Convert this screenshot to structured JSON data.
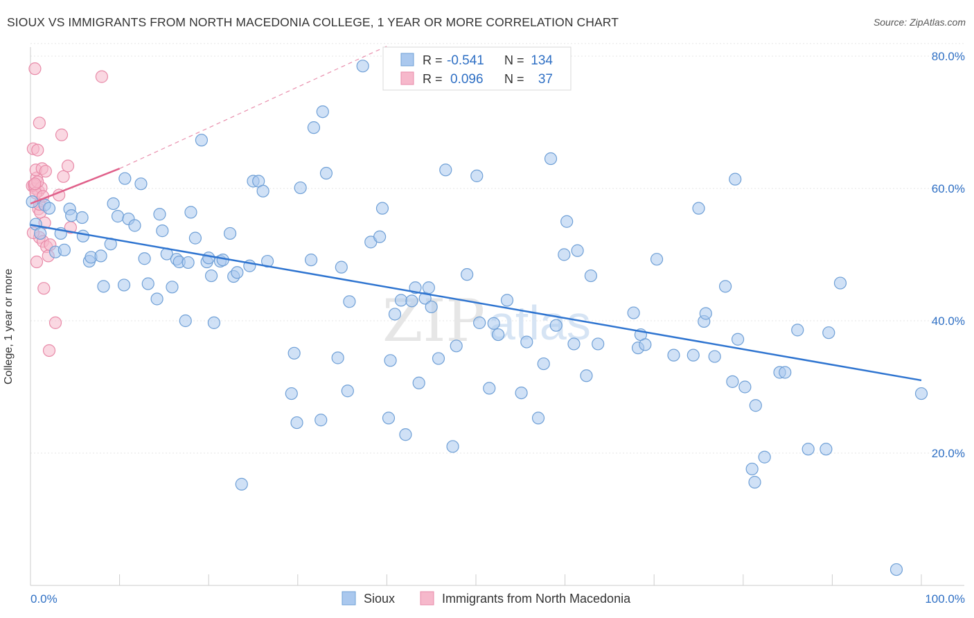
{
  "title": "SIOUX VS IMMIGRANTS FROM NORTH MACEDONIA COLLEGE, 1 YEAR OR MORE CORRELATION CHART",
  "source": "Source: ZipAtlas.com",
  "watermark": {
    "zip": "ZIP",
    "atlas": "atlas"
  },
  "legend_box": {
    "r_label": "R =",
    "n_label": "N =",
    "rows": [
      {
        "series": "Sioux",
        "r": "-0.541",
        "n": "134"
      },
      {
        "series": "Immigrants from North Macedonia",
        "r": "0.096",
        "n": "37"
      }
    ]
  },
  "bottom_legend": [
    "Sioux",
    "Immigrants from North Macedonia"
  ],
  "colors": {
    "sioux_fill": "#aac8ee",
    "sioux_stroke": "#6e9fd6",
    "sioux_line": "#2e74d0",
    "mac_fill": "#f6b8cb",
    "mac_stroke": "#e88aa8",
    "mac_line": "#e0608a",
    "value_text": "#2e6fc4",
    "grid": "#e5e5e5"
  },
  "chart_data": {
    "type": "scatter",
    "xlabel": "",
    "ylabel": "College, 1 year or more",
    "xlim": [
      0,
      100
    ],
    "ylim": [
      0,
      82
    ],
    "x_tick_labels": [
      "0.0%",
      "100.0%"
    ],
    "y_tick_labels": [
      "20.0%",
      "40.0%",
      "60.0%",
      "80.0%"
    ],
    "y_ticks": [
      20,
      40,
      60,
      80
    ],
    "grid": true,
    "series": [
      {
        "name": "Sioux",
        "r": -0.541,
        "n": 134,
        "trend": {
          "x": [
            0,
            100
          ],
          "y": [
            54.5,
            31.0
          ]
        },
        "points": [
          [
            0.2,
            58.0
          ],
          [
            0.6,
            54.6
          ],
          [
            1.1,
            53.2
          ],
          [
            1.6,
            57.5
          ],
          [
            2.1,
            57.0
          ],
          [
            2.8,
            50.4
          ],
          [
            3.4,
            53.2
          ],
          [
            3.8,
            50.7
          ],
          [
            4.4,
            56.9
          ],
          [
            4.6,
            55.9
          ],
          [
            5.8,
            55.6
          ],
          [
            5.9,
            52.8
          ],
          [
            6.6,
            49.0
          ],
          [
            6.8,
            49.6
          ],
          [
            7.9,
            49.8
          ],
          [
            8.2,
            45.2
          ],
          [
            9.0,
            51.6
          ],
          [
            9.3,
            57.7
          ],
          [
            9.8,
            55.8
          ],
          [
            10.5,
            45.4
          ],
          [
            10.6,
            61.5
          ],
          [
            11.0,
            55.4
          ],
          [
            11.7,
            54.4
          ],
          [
            12.4,
            60.7
          ],
          [
            12.8,
            49.4
          ],
          [
            13.2,
            45.6
          ],
          [
            14.2,
            43.3
          ],
          [
            14.5,
            56.1
          ],
          [
            14.8,
            53.6
          ],
          [
            15.3,
            50.1
          ],
          [
            15.9,
            45.1
          ],
          [
            16.4,
            49.3
          ],
          [
            16.7,
            48.9
          ],
          [
            17.4,
            40.0
          ],
          [
            17.7,
            48.8
          ],
          [
            18.0,
            56.4
          ],
          [
            18.5,
            52.5
          ],
          [
            19.2,
            67.3
          ],
          [
            19.8,
            48.9
          ],
          [
            20.3,
            46.8
          ],
          [
            20.6,
            39.7
          ],
          [
            21.3,
            49.0
          ],
          [
            21.6,
            49.2
          ],
          [
            22.4,
            53.2
          ],
          [
            22.8,
            46.7
          ],
          [
            23.2,
            47.3
          ],
          [
            23.7,
            15.3
          ],
          [
            24.6,
            48.3
          ],
          [
            25.0,
            61.1
          ],
          [
            25.6,
            61.1
          ],
          [
            26.1,
            59.6
          ],
          [
            26.6,
            49.0
          ],
          [
            29.3,
            29.0
          ],
          [
            29.6,
            35.1
          ],
          [
            29.9,
            24.6
          ],
          [
            30.3,
            60.1
          ],
          [
            31.5,
            49.2
          ],
          [
            31.8,
            69.2
          ],
          [
            32.6,
            25.0
          ],
          [
            32.8,
            71.6
          ],
          [
            33.2,
            62.3
          ],
          [
            34.5,
            34.4
          ],
          [
            34.9,
            48.1
          ],
          [
            35.6,
            29.4
          ],
          [
            35.8,
            42.9
          ],
          [
            37.3,
            78.5
          ],
          [
            38.2,
            51.9
          ],
          [
            39.2,
            52.7
          ],
          [
            39.5,
            57.0
          ],
          [
            40.2,
            25.3
          ],
          [
            40.4,
            34.0
          ],
          [
            40.9,
            41.0
          ],
          [
            41.6,
            43.1
          ],
          [
            42.1,
            22.8
          ],
          [
            42.8,
            43.0
          ],
          [
            43.2,
            45.0
          ],
          [
            43.6,
            30.6
          ],
          [
            44.3,
            43.4
          ],
          [
            44.7,
            45.0
          ],
          [
            45.0,
            42.1
          ],
          [
            45.8,
            34.3
          ],
          [
            46.6,
            62.8
          ],
          [
            47.4,
            21.0
          ],
          [
            47.8,
            36.2
          ],
          [
            49.0,
            47.0
          ],
          [
            50.1,
            61.9
          ],
          [
            50.4,
            39.7
          ],
          [
            51.5,
            29.8
          ],
          [
            52.0,
            39.6
          ],
          [
            52.5,
            37.9
          ],
          [
            53.5,
            43.1
          ],
          [
            55.1,
            29.1
          ],
          [
            55.7,
            36.8
          ],
          [
            57.0,
            25.3
          ],
          [
            57.6,
            33.5
          ],
          [
            58.4,
            64.5
          ],
          [
            59.0,
            39.3
          ],
          [
            59.9,
            50.0
          ],
          [
            60.2,
            55.0
          ],
          [
            61.0,
            36.5
          ],
          [
            61.4,
            50.6
          ],
          [
            62.4,
            31.7
          ],
          [
            62.9,
            46.8
          ],
          [
            63.7,
            36.5
          ],
          [
            67.7,
            41.2
          ],
          [
            68.2,
            35.9
          ],
          [
            68.5,
            37.9
          ],
          [
            69.0,
            36.4
          ],
          [
            70.3,
            49.3
          ],
          [
            72.2,
            34.8
          ],
          [
            74.4,
            34.8
          ],
          [
            75.0,
            57.0
          ],
          [
            75.6,
            39.9
          ],
          [
            75.8,
            41.1
          ],
          [
            76.8,
            34.6
          ],
          [
            78.0,
            45.2
          ],
          [
            78.8,
            30.8
          ],
          [
            79.1,
            61.4
          ],
          [
            79.4,
            37.2
          ],
          [
            80.2,
            30.0
          ],
          [
            81.0,
            17.6
          ],
          [
            81.3,
            15.6
          ],
          [
            81.4,
            27.2
          ],
          [
            82.4,
            19.4
          ],
          [
            84.1,
            32.2
          ],
          [
            84.7,
            32.2
          ],
          [
            86.1,
            38.6
          ],
          [
            87.3,
            20.6
          ],
          [
            89.3,
            20.6
          ],
          [
            89.6,
            38.2
          ],
          [
            90.9,
            45.7
          ],
          [
            97.2,
            2.4
          ],
          [
            100.0,
            29.0
          ],
          [
            20.0,
            49.5
          ]
        ]
      },
      {
        "name": "Immigrants from North Macedonia",
        "r": 0.096,
        "n": 37,
        "trend": {
          "x": [
            0,
            10
          ],
          "y": [
            57.7,
            63.0
          ]
        },
        "trend_dashed": {
          "x": [
            10,
            40
          ],
          "y": [
            63.0,
            81.5
          ]
        },
        "points": [
          [
            0.2,
            60.4
          ],
          [
            0.3,
            66.0
          ],
          [
            0.5,
            60.0
          ],
          [
            0.7,
            61.6
          ],
          [
            0.8,
            65.8
          ],
          [
            0.5,
            78.1
          ],
          [
            0.6,
            62.8
          ],
          [
            0.9,
            59.6
          ],
          [
            1.0,
            69.9
          ],
          [
            0.9,
            56.9
          ],
          [
            1.0,
            52.6
          ],
          [
            1.1,
            56.4
          ],
          [
            1.3,
            63.0
          ],
          [
            1.4,
            52.0
          ],
          [
            1.6,
            54.8
          ],
          [
            1.5,
            44.9
          ],
          [
            1.8,
            51.2
          ],
          [
            2.0,
            49.8
          ],
          [
            2.2,
            51.5
          ],
          [
            2.1,
            35.5
          ],
          [
            2.8,
            39.7
          ],
          [
            3.2,
            59.0
          ],
          [
            3.5,
            68.1
          ],
          [
            3.7,
            61.8
          ],
          [
            4.2,
            63.4
          ],
          [
            4.5,
            54.1
          ],
          [
            8.0,
            76.9
          ],
          [
            0.4,
            60.5
          ],
          [
            1.2,
            60.1
          ],
          [
            0.6,
            59.3
          ],
          [
            0.8,
            61.0
          ],
          [
            1.7,
            62.6
          ],
          [
            0.3,
            53.3
          ],
          [
            1.0,
            57.6
          ],
          [
            0.7,
            48.9
          ],
          [
            1.4,
            58.8
          ],
          [
            0.5,
            60.7
          ]
        ]
      }
    ]
  }
}
